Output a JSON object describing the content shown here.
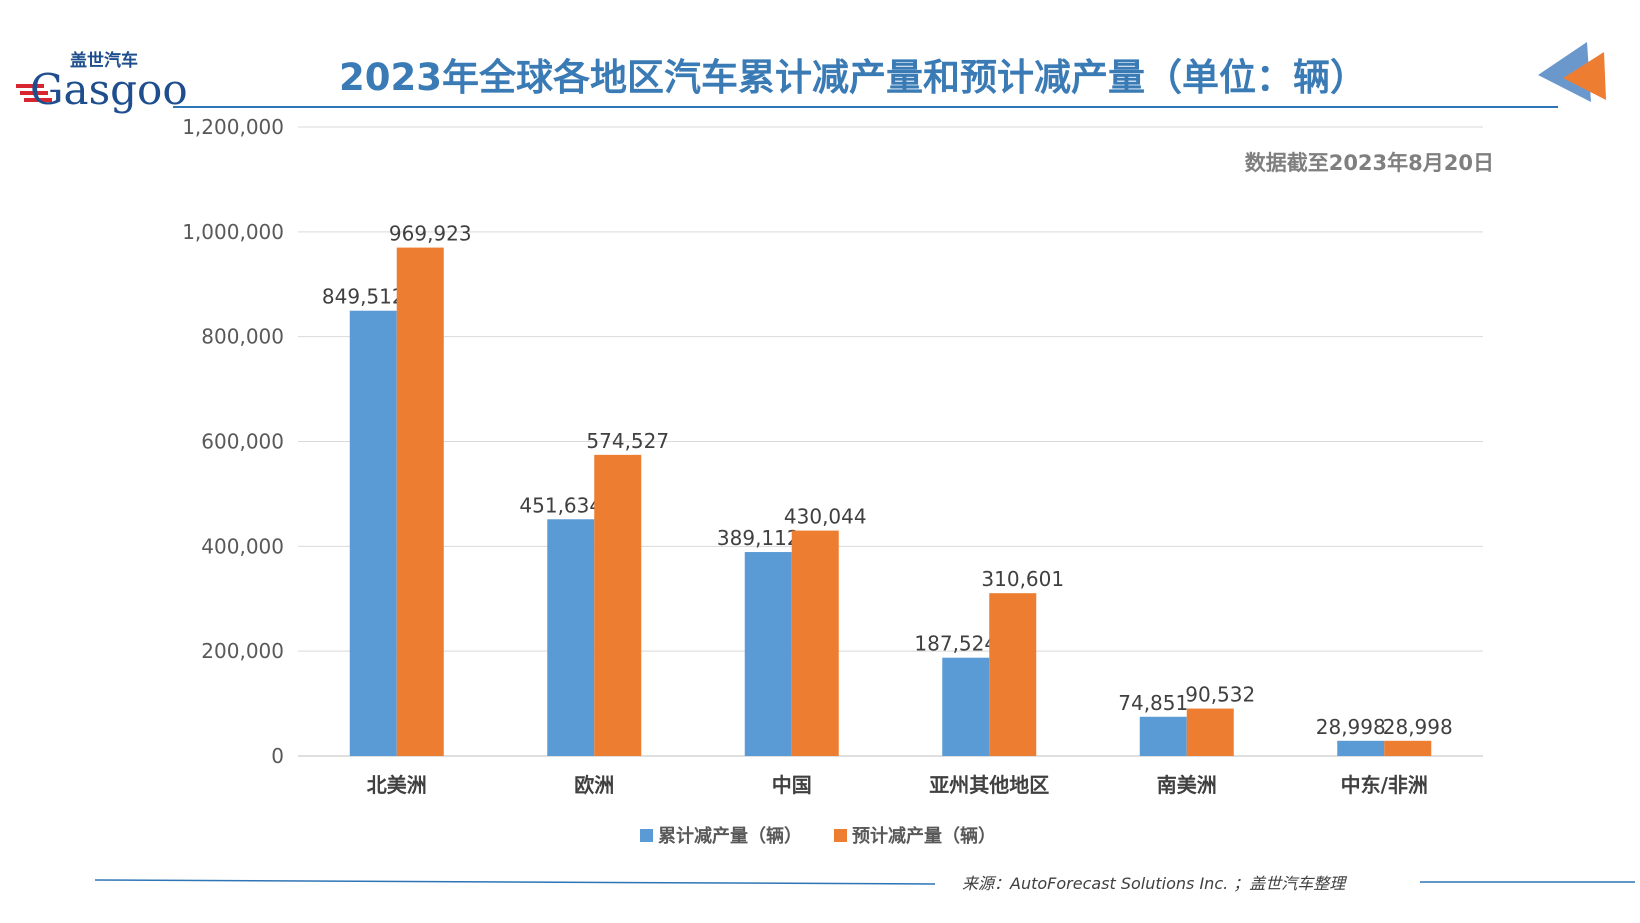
{
  "logo": {
    "text": "Gasgoo",
    "cn": "盖世汽车"
  },
  "header": {
    "title": "2023年全球各地区汽车累计减产量和预计减产量（单位：辆）"
  },
  "note": "数据截至2023年8月20日",
  "source": "来源：AutoForecast Solutions Inc. ；盖世汽车整理",
  "colors": {
    "title": "#3a7bb5",
    "series1": "#5b9bd5",
    "series2": "#ed7d31",
    "grid": "#d9d9d9"
  },
  "chart_data": {
    "type": "bar",
    "title": "2023年全球各地区汽车累计减产量和预计减产量（单位：辆）",
    "categories": [
      "北美洲",
      "欧洲",
      "中国",
      "亚州其他地区",
      "南美洲",
      "中东/非洲"
    ],
    "series": [
      {
        "name": "累计减产量（辆）",
        "values": [
          849512,
          451634,
          389112,
          187524,
          74851,
          28998
        ]
      },
      {
        "name": "预计减产量（辆）",
        "values": [
          969923,
          574527,
          430044,
          310601,
          90532,
          28998
        ]
      }
    ],
    "ylim": [
      0,
      1200000
    ],
    "yticks": [
      0,
      200000,
      400000,
      600000,
      800000,
      1000000,
      1200000
    ],
    "grid": true,
    "legend": "bottom"
  }
}
